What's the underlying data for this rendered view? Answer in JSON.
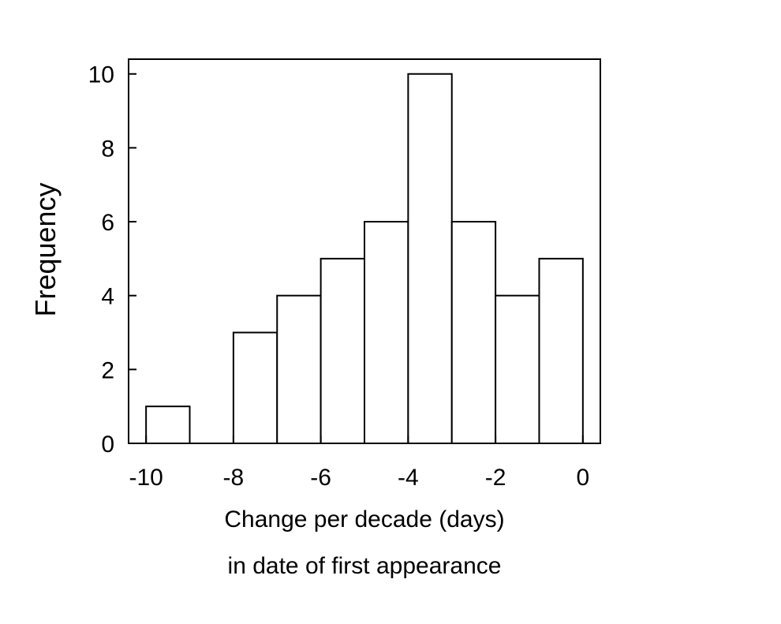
{
  "chart_data": {
    "type": "bar",
    "subtype": "histogram",
    "bin_edges": [
      -10,
      -9,
      -8,
      -7,
      -6,
      -5,
      -4,
      -3,
      -2,
      -1,
      0
    ],
    "categories": [
      "-10 to -9",
      "-9 to -8",
      "-8 to -7",
      "-7 to -6",
      "-6 to -5",
      "-5 to -4",
      "-4 to -3",
      "-3 to -2",
      "-2 to -1",
      "-1 to 0"
    ],
    "values": [
      1,
      0,
      3,
      4,
      5,
      6,
      10,
      6,
      4,
      5
    ],
    "xlabel": "Change per decade (days)",
    "xlabel_line2": "in date of first appearance",
    "ylabel": "Frequency",
    "xlim": [
      -10.4,
      0.4
    ],
    "ylim": [
      0,
      10.4
    ],
    "xticks": [
      -10,
      -8,
      -6,
      -4,
      -2,
      0
    ],
    "xtick_labels": [
      "-10",
      "-8",
      "-6",
      "-4",
      "-2",
      "0"
    ],
    "yticks": [
      0,
      2,
      4,
      6,
      8,
      10
    ],
    "ytick_labels": [
      "0",
      "2",
      "4",
      "6",
      "8",
      "10"
    ],
    "grid": false,
    "legend": "none",
    "colors": {
      "bar_fill": "#ffffff",
      "bar_stroke": "#000000",
      "axis": "#000000"
    }
  }
}
